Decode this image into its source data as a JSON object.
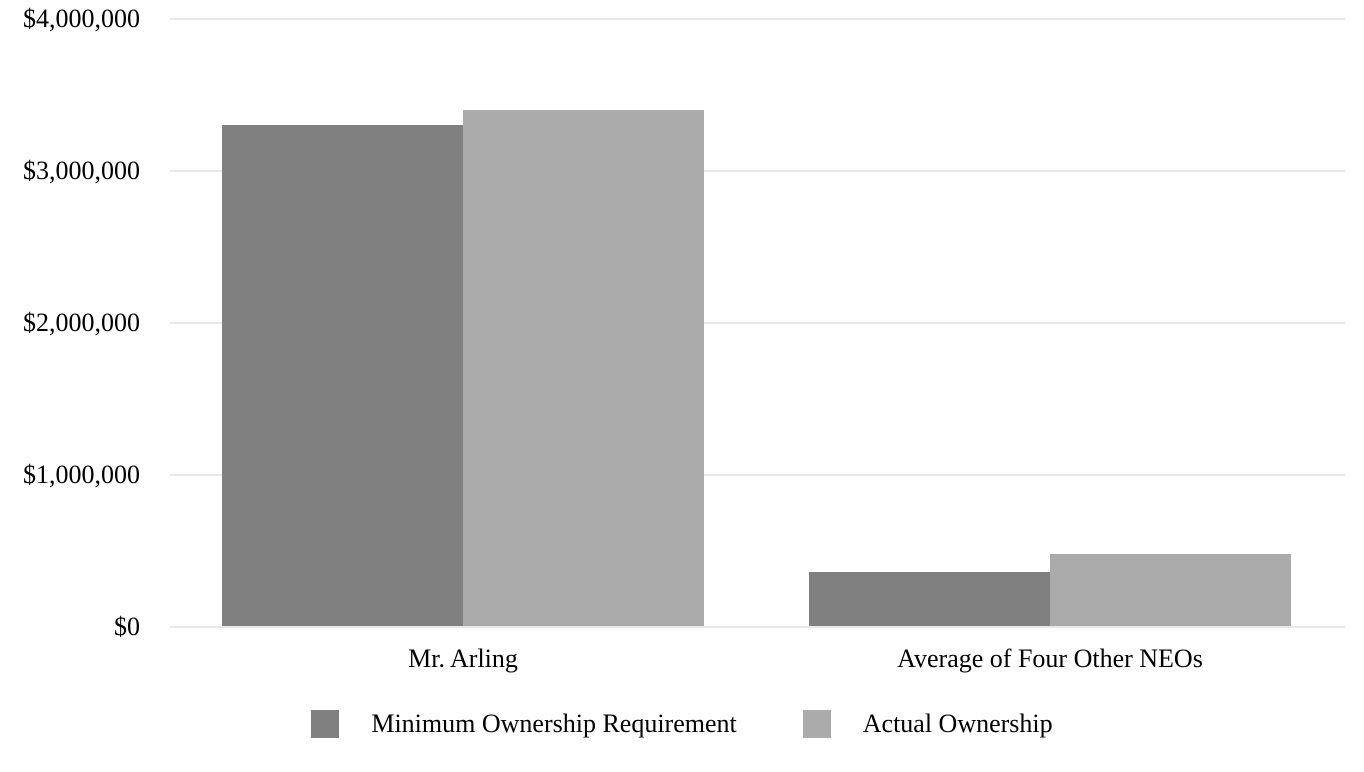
{
  "chart_data": {
    "type": "bar",
    "title": "",
    "xlabel": "",
    "ylabel": "",
    "categories": [
      "Mr. Arling",
      "Average of Four Other NEOs"
    ],
    "series": [
      {
        "name": "Minimum Ownership Requirement",
        "color": "#808080",
        "values": [
          3300000,
          365000
        ]
      },
      {
        "name": "Actual Ownership",
        "color": "#ababab",
        "values": [
          3400000,
          480000
        ]
      }
    ],
    "ylim": [
      0,
      4000000
    ],
    "ytick_interval": 1000000,
    "yticks": [
      0,
      1000000,
      2000000,
      3000000,
      4000000
    ],
    "ytick_labels": [
      "$0",
      "$1,000,000",
      "$2,000,000",
      "$3,000,000",
      "$4,000,000"
    ],
    "grid": true,
    "gridline_color": "#e8e8e8",
    "background_color": "#ffffff",
    "text_color": "#000000",
    "legend_position": "bottom"
  }
}
